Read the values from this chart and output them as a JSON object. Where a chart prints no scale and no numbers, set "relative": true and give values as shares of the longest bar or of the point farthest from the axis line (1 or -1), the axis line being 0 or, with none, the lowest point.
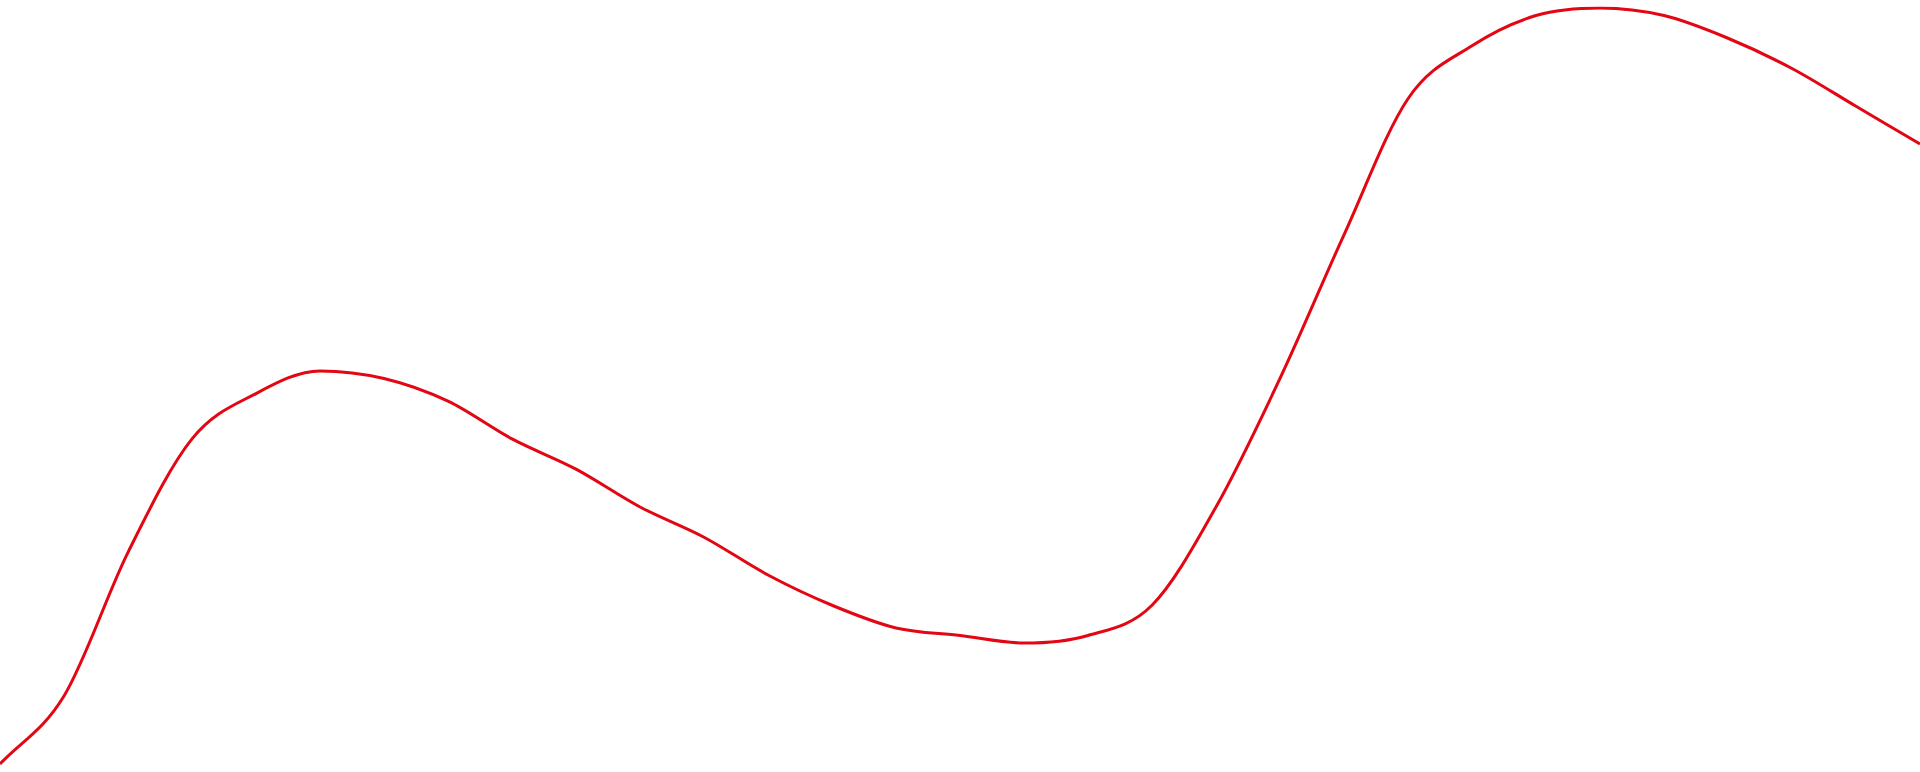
{
  "chart_data": {
    "type": "line",
    "relative": true,
    "categories": [
      null,
      null,
      null,
      null,
      null,
      null,
      null,
      null,
      null,
      null,
      null,
      null,
      null,
      null,
      null,
      null,
      null,
      null,
      null,
      null,
      null,
      null,
      null,
      null,
      null,
      null,
      null,
      null,
      null,
      null,
      null
    ],
    "series": [
      {
        "color": "#e30613",
        "values": [
          0,
          0.09,
          0.28,
          0.43,
          0.49,
          0.52,
          0.51,
          0.48,
          0.43,
          0.39,
          0.34,
          0.3,
          0.25,
          0.21,
          0.18,
          0.17,
          0.16,
          0.17,
          0.21,
          0.34,
          0.51,
          0.7,
          0.88,
          0.95,
          0.99,
          1,
          0.99,
          0.96,
          0.92,
          0.87,
          0.82
        ]
      }
    ],
    "legend": false,
    "marker": "none",
    "line_style": "solid"
  }
}
